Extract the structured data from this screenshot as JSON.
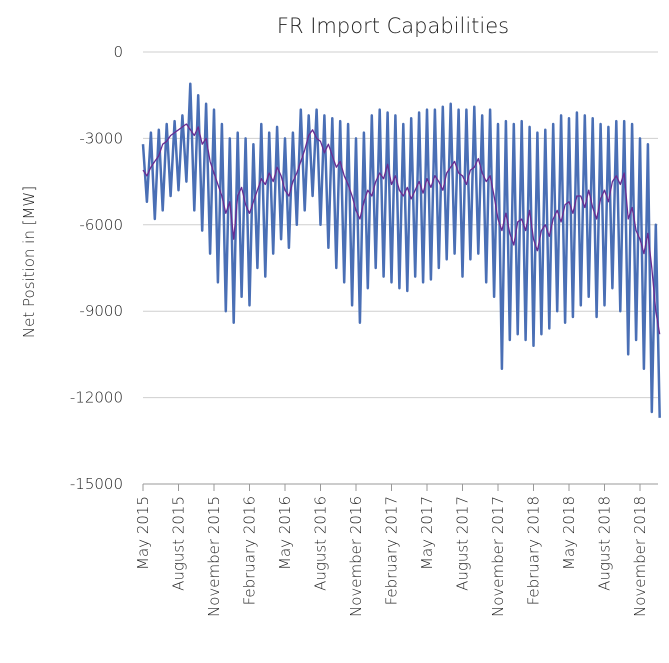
{
  "chart_data": {
    "type": "line",
    "title": "FR Import Capabilities",
    "y_label": "Net Position in [MW]",
    "categories": [
      "May 2015",
      null,
      null,
      null,
      null,
      null,
      null,
      null,
      null,
      "August 2015",
      null,
      null,
      null,
      null,
      null,
      null,
      null,
      null,
      "November 2015",
      null,
      null,
      null,
      null,
      null,
      null,
      null,
      null,
      "February 2016",
      null,
      null,
      null,
      null,
      null,
      null,
      null,
      null,
      "May 2016",
      null,
      null,
      null,
      null,
      null,
      null,
      null,
      null,
      "August 2016",
      null,
      null,
      null,
      null,
      null,
      null,
      null,
      null,
      "November 2016",
      null,
      null,
      null,
      null,
      null,
      null,
      null,
      null,
      "February 2017",
      null,
      null,
      null,
      null,
      null,
      null,
      null,
      null,
      "May 2017",
      null,
      null,
      null,
      null,
      null,
      null,
      null,
      null,
      "August 2017",
      null,
      null,
      null,
      null,
      null,
      null,
      null,
      null,
      "November 2017",
      null,
      null,
      null,
      null,
      null,
      null,
      null,
      null,
      "February 2018",
      null,
      null,
      null,
      null,
      null,
      null,
      null,
      null,
      "May 2018",
      null,
      null,
      null,
      null,
      null,
      null,
      null,
      null,
      "August 2018",
      null,
      null,
      null,
      null,
      null,
      null,
      null,
      null,
      "November 2018",
      null,
      null,
      null,
      null,
      null
    ],
    "series": [
      {
        "color": "#4a6fb5",
        "values": [
          -3200,
          -5200,
          -2800,
          -5800,
          -2700,
          -5500,
          -2500,
          -5000,
          -2400,
          -4800,
          -2200,
          -4500,
          -1100,
          -5500,
          -1500,
          -6200,
          -1800,
          -7000,
          -2000,
          -8000,
          -2500,
          -9000,
          -3000,
          -9400,
          -2800,
          -8500,
          -3000,
          -8800,
          -3200,
          -7500,
          -2500,
          -7800,
          -2800,
          -7000,
          -2600,
          -6500,
          -3000,
          -6800,
          -2800,
          -6000,
          -2000,
          -5500,
          -2200,
          -5000,
          -2000,
          -6000,
          -2200,
          -6800,
          -2300,
          -7500,
          -2400,
          -8000,
          -2500,
          -8800,
          -3000,
          -9400,
          -2800,
          -8200,
          -2200,
          -7500,
          -2000,
          -7800,
          -2100,
          -8000,
          -2200,
          -8200,
          -2500,
          -8300,
          -2300,
          -7800,
          -2100,
          -8000,
          -2000,
          -7900,
          -2000,
          -7500,
          -1900,
          -7200,
          -1800,
          -7000,
          -2000,
          -7800,
          -2000,
          -7200,
          -1900,
          -7000,
          -2200,
          -8000,
          -2000,
          -8500,
          -2500,
          -11000,
          -2400,
          -10000,
          -2500,
          -9800,
          -2400,
          -10000,
          -2600,
          -10200,
          -2800,
          -9800,
          -2700,
          -9600,
          -2500,
          -9000,
          -2200,
          -9400,
          -2300,
          -9200,
          -2100,
          -8800,
          -2200,
          -8500,
          -2300,
          -9200,
          -2500,
          -8800,
          -2600,
          -8200,
          -2400,
          -9000,
          -2400,
          -10500,
          -2500,
          -10000,
          -3000,
          -11000,
          -3200,
          -12500,
          -6000,
          -12700
        ]
      },
      {
        "color": "#6a2c91",
        "values": [
          -4100,
          -4300,
          -4000,
          -3800,
          -3600,
          -3200,
          -3100,
          -2900,
          -2800,
          -2700,
          -2600,
          -2500,
          -2700,
          -2900,
          -2600,
          -3200,
          -3000,
          -3800,
          -4200,
          -4600,
          -5000,
          -5600,
          -5200,
          -6500,
          -5000,
          -4700,
          -5300,
          -5600,
          -5200,
          -4800,
          -4400,
          -4600,
          -4200,
          -4500,
          -4000,
          -4300,
          -4800,
          -5000,
          -4500,
          -4200,
          -3800,
          -3400,
          -2900,
          -2700,
          -3000,
          -3100,
          -3500,
          -3200,
          -3600,
          -4000,
          -3800,
          -4300,
          -4600,
          -5000,
          -5500,
          -5800,
          -5200,
          -4800,
          -5000,
          -4500,
          -4200,
          -4400,
          -3900,
          -4600,
          -4300,
          -4800,
          -5000,
          -4700,
          -5100,
          -4800,
          -4500,
          -4900,
          -4400,
          -4700,
          -4300,
          -4500,
          -4800,
          -4200,
          -4000,
          -3800,
          -4200,
          -4300,
          -4600,
          -4100,
          -4000,
          -3700,
          -4200,
          -4500,
          -4300,
          -5000,
          -5800,
          -6200,
          -5600,
          -6300,
          -6700,
          -5900,
          -5800,
          -6200,
          -5500,
          -6500,
          -6900,
          -6200,
          -6000,
          -6400,
          -5800,
          -5500,
          -5900,
          -5300,
          -5200,
          -5600,
          -5000,
          -5000,
          -5400,
          -4800,
          -5400,
          -5800,
          -5100,
          -4800,
          -5200,
          -4500,
          -4300,
          -4600,
          -4200,
          -5800,
          -5400,
          -6200,
          -6500,
          -7000,
          -6300,
          -7500,
          -9000,
          -9800
        ]
      }
    ],
    "ylim": [
      -15000,
      0
    ],
    "yticks": [
      -15000,
      -12000,
      -9000,
      -6000,
      -3000,
      0
    ],
    "grid": true
  }
}
